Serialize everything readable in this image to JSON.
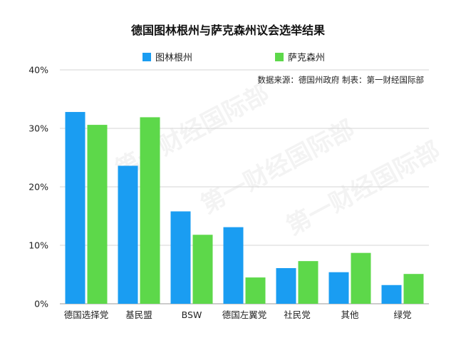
{
  "chart_data": {
    "type": "bar",
    "title": "德国图林根州与萨克森州议会选举结果",
    "source": "数据来源：德国州政府 制表：第一财经国际部",
    "watermark": "第一财经国际部",
    "categories": [
      "德国选择党",
      "基民盟",
      "BSW",
      "德国左翼党",
      "社民党",
      "其他",
      "绿党"
    ],
    "series": [
      {
        "name": "图林根州",
        "color": "#1a9df2",
        "values": [
          32.8,
          23.6,
          15.8,
          13.1,
          6.1,
          5.4,
          3.2
        ]
      },
      {
        "name": "萨克森州",
        "color": "#5dd84a",
        "values": [
          30.6,
          31.9,
          11.8,
          4.5,
          7.3,
          8.7,
          5.1
        ]
      }
    ],
    "yticks": [
      "0%",
      "10%",
      "20%",
      "30%",
      "40%"
    ],
    "ylim": [
      0,
      40
    ],
    "grid": true,
    "legend_position": "top-center"
  }
}
